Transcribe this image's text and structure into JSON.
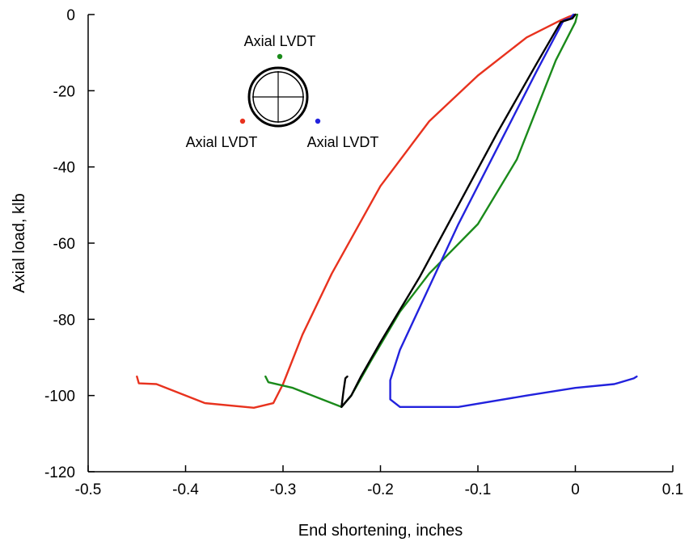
{
  "chart_data": {
    "type": "line",
    "title": "",
    "xlabel": "End shortening, inches",
    "ylabel": "Axial load, klb",
    "xlim": [
      -0.5,
      0.1
    ],
    "ylim": [
      -120,
      0
    ],
    "xticks": [
      -0.5,
      -0.4,
      -0.3,
      -0.2,
      -0.1,
      0,
      0.1
    ],
    "yticks": [
      0,
      -20,
      -40,
      -60,
      -80,
      -100,
      -120
    ],
    "xtick_labels": [
      "-0.5",
      "-0.4",
      "-0.3",
      "-0.2",
      "-0.1",
      "0",
      "0.1"
    ],
    "ytick_labels": [
      "0",
      "-20",
      "-40",
      "-60",
      "-80",
      "-100",
      "-120"
    ],
    "grid": false,
    "legend": "none",
    "series": [
      {
        "color": "#e8321e",
        "points": [
          [
            0,
            0
          ],
          [
            -0.006,
            -0.5
          ],
          [
            -0.015,
            -1.5
          ],
          [
            -0.05,
            -6
          ],
          [
            -0.1,
            -16
          ],
          [
            -0.15,
            -28
          ],
          [
            -0.2,
            -45
          ],
          [
            -0.25,
            -68
          ],
          [
            -0.28,
            -84
          ],
          [
            -0.3,
            -97
          ],
          [
            -0.31,
            -102
          ],
          [
            -0.33,
            -103.2
          ],
          [
            -0.38,
            -102
          ],
          [
            -0.43,
            -97
          ],
          [
            -0.448,
            -96.8
          ],
          [
            -0.45,
            -95
          ]
        ]
      },
      {
        "color": "#1a8a1a",
        "points": [
          [
            0.002,
            0
          ],
          [
            0.0,
            -2
          ],
          [
            -0.02,
            -12
          ],
          [
            -0.06,
            -38
          ],
          [
            -0.1,
            -55
          ],
          [
            -0.15,
            -68
          ],
          [
            -0.18,
            -78
          ],
          [
            -0.21,
            -91
          ],
          [
            -0.23,
            -100
          ],
          [
            -0.24,
            -103
          ],
          [
            -0.26,
            -101
          ],
          [
            -0.29,
            -98
          ],
          [
            -0.315,
            -96.5
          ],
          [
            -0.318,
            -95
          ]
        ]
      },
      {
        "color": "#2222dd",
        "points": [
          [
            -0.002,
            0
          ],
          [
            -0.005,
            -1
          ],
          [
            -0.012,
            -1.5
          ],
          [
            -0.04,
            -15
          ],
          [
            -0.08,
            -35
          ],
          [
            -0.12,
            -55
          ],
          [
            -0.16,
            -77
          ],
          [
            -0.18,
            -88
          ],
          [
            -0.19,
            -96
          ],
          [
            -0.19,
            -101
          ],
          [
            -0.18,
            -103
          ],
          [
            -0.12,
            -103
          ],
          [
            -0.05,
            -100
          ],
          [
            0,
            -98
          ],
          [
            0.04,
            -97
          ],
          [
            0.06,
            -95.5
          ],
          [
            0.063,
            -95
          ]
        ]
      },
      {
        "color": "#000000",
        "points": [
          [
            0,
            0
          ],
          [
            -0.003,
            -1
          ],
          [
            -0.015,
            -2
          ],
          [
            -0.04,
            -13
          ],
          [
            -0.08,
            -31
          ],
          [
            -0.12,
            -50
          ],
          [
            -0.16,
            -69
          ],
          [
            -0.2,
            -86
          ],
          [
            -0.22,
            -95
          ],
          [
            -0.23,
            -100
          ],
          [
            -0.24,
            -103
          ],
          [
            -0.238,
            -99
          ],
          [
            -0.236,
            -95.5
          ],
          [
            -0.234,
            -95
          ]
        ]
      }
    ],
    "inset": {
      "labels": [
        {
          "text": "Axial LVDT",
          "color": "#1a8a1a"
        },
        {
          "text": "Axial LVDT",
          "color": "#e8321e"
        },
        {
          "text": "Axial LVDT",
          "color": "#2222dd"
        }
      ]
    }
  }
}
